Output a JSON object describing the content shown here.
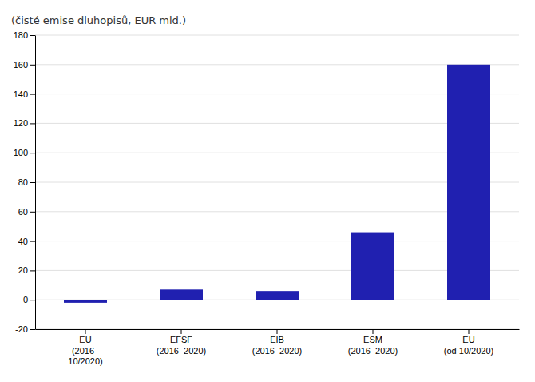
{
  "chart_data": {
    "type": "bar",
    "ylabel": "(čisté emise dluhopisů, EUR mld.)",
    "categories": [
      "EU\n(2016–\n10/2020)",
      "EFSF\n(2016–2020)",
      "EIB\n(2016–2020)",
      "ESM\n(2016–2020)",
      "EU\n(od 10/2020)"
    ],
    "values": [
      -2,
      7,
      6,
      46,
      160
    ],
    "color": "#2020b0",
    "ylim": [
      -20,
      180
    ],
    "yticks": [
      -20,
      0,
      20,
      40,
      60,
      80,
      100,
      120,
      140,
      160,
      180
    ],
    "grid": true
  }
}
